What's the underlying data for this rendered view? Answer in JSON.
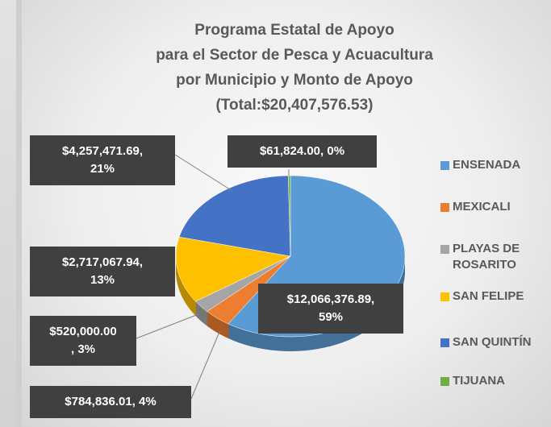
{
  "chart_data": {
    "type": "pie",
    "title": "Programa Estatal de Apoyo\npara el Sector de Pesca y Acuacultura\npor Municipio y Monto de Apoyo\n(Total:$20,407,576.53)",
    "categories": [
      "ENSENADA",
      "MEXICALI",
      "PLAYAS DE ROSARITO",
      "SAN FELIPE",
      "SAN QUINTÍN",
      "TIJUANA"
    ],
    "values": [
      12066376.89,
      784836.01,
      520000.0,
      2717067.94,
      4257471.69,
      61824.0
    ],
    "value_labels": [
      "$12,066,376.89,\n59%",
      "$784,836.01, 4%",
      "$520,000.00\n, 3%",
      "$2,717,067.94,\n13%",
      "$4,257,471.69,\n21%",
      "$61,824.00, 0%"
    ],
    "colors": [
      "#5b9bd5",
      "#ed7d31",
      "#a5a5a5",
      "#ffc000",
      "#4472c4",
      "#70ad47"
    ],
    "legend": "right"
  }
}
